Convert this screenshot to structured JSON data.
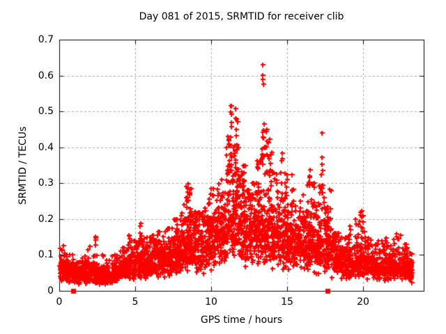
{
  "chart_data": {
    "type": "scatter",
    "title": "Day 081 of 2015, SRMTID for receiver clib",
    "xlabel": "GPS time / hours",
    "ylabel": "SRMTID / TECUs",
    "xlim": [
      0,
      24
    ],
    "ylim": [
      0,
      0.7
    ],
    "xticks": [
      [
        0,
        "0"
      ],
      [
        5,
        "5"
      ],
      [
        10,
        "10"
      ],
      [
        15,
        "15"
      ],
      [
        20,
        "20"
      ]
    ],
    "yticks": [
      [
        0,
        "0"
      ],
      [
        0.1,
        "0.1"
      ],
      [
        0.2,
        "0.2"
      ],
      [
        0.3,
        "0.3"
      ],
      [
        0.4,
        "0.4"
      ],
      [
        0.5,
        "0.5"
      ],
      [
        0.6,
        "0.6"
      ],
      [
        0.7,
        "0.7"
      ]
    ],
    "grid": {
      "on": true,
      "style": "dashed",
      "color": "#a8a8a8"
    },
    "border_color": "#000000",
    "background": "#ffffff",
    "marker": {
      "shape": "plus",
      "color": "#ff0000",
      "size": 7,
      "stroke": 2
    },
    "series_name": "SRMTID",
    "seed": 20150081,
    "density_profile": [
      [
        0.0,
        0.5,
        75,
        0.06,
        0.13
      ],
      [
        0.5,
        1.0,
        70,
        0.05,
        0.1
      ],
      [
        1.0,
        1.5,
        70,
        0.045,
        0.095
      ],
      [
        1.5,
        2.0,
        70,
        0.05,
        0.12
      ],
      [
        2.0,
        2.5,
        70,
        0.048,
        0.13
      ],
      [
        2.5,
        3.0,
        70,
        0.042,
        0.1
      ],
      [
        3.0,
        3.5,
        70,
        0.04,
        0.085
      ],
      [
        3.5,
        4.0,
        70,
        0.05,
        0.1
      ],
      [
        4.0,
        4.5,
        72,
        0.06,
        0.12
      ],
      [
        4.5,
        5.0,
        72,
        0.07,
        0.14
      ],
      [
        5.0,
        5.5,
        75,
        0.078,
        0.135
      ],
      [
        5.5,
        6.0,
        75,
        0.08,
        0.15
      ],
      [
        6.0,
        6.5,
        75,
        0.088,
        0.155
      ],
      [
        6.5,
        7.0,
        75,
        0.09,
        0.165
      ],
      [
        7.0,
        7.5,
        78,
        0.098,
        0.175
      ],
      [
        7.5,
        8.0,
        78,
        0.1,
        0.2
      ],
      [
        8.0,
        8.5,
        80,
        0.115,
        0.24
      ],
      [
        8.5,
        9.0,
        80,
        0.135,
        0.26
      ],
      [
        9.0,
        9.5,
        75,
        0.12,
        0.22
      ],
      [
        9.5,
        10.0,
        78,
        0.13,
        0.27
      ],
      [
        10.0,
        10.5,
        80,
        0.14,
        0.285
      ],
      [
        10.5,
        11.0,
        85,
        0.16,
        0.31
      ],
      [
        11.0,
        11.5,
        85,
        0.195,
        0.4
      ],
      [
        11.5,
        12.0,
        85,
        0.21,
        0.4
      ],
      [
        12.0,
        12.5,
        82,
        0.18,
        0.35
      ],
      [
        12.5,
        13.0,
        80,
        0.17,
        0.3
      ],
      [
        13.0,
        13.5,
        85,
        0.18,
        0.4
      ],
      [
        13.5,
        14.0,
        85,
        0.17,
        0.4
      ],
      [
        14.0,
        14.5,
        80,
        0.16,
        0.33
      ],
      [
        14.5,
        15.0,
        78,
        0.15,
        0.3
      ],
      [
        15.0,
        15.5,
        78,
        0.14,
        0.285
      ],
      [
        15.5,
        16.0,
        75,
        0.135,
        0.25
      ],
      [
        16.0,
        16.5,
        78,
        0.14,
        0.3
      ],
      [
        16.5,
        17.0,
        75,
        0.13,
        0.3
      ],
      [
        17.0,
        17.5,
        78,
        0.125,
        0.3
      ],
      [
        17.5,
        18.0,
        75,
        0.12,
        0.29
      ],
      [
        18.0,
        18.5,
        70,
        0.09,
        0.16
      ],
      [
        18.5,
        19.0,
        68,
        0.082,
        0.15
      ],
      [
        19.0,
        19.5,
        68,
        0.08,
        0.18
      ],
      [
        19.5,
        20.0,
        68,
        0.08,
        0.2
      ],
      [
        20.0,
        20.5,
        68,
        0.072,
        0.15
      ],
      [
        20.5,
        21.0,
        66,
        0.07,
        0.13
      ],
      [
        21.0,
        21.5,
        66,
        0.07,
        0.14
      ],
      [
        21.5,
        22.0,
        66,
        0.07,
        0.155
      ],
      [
        22.0,
        22.5,
        66,
        0.068,
        0.16
      ],
      [
        22.5,
        23.0,
        64,
        0.065,
        0.13
      ],
      [
        23.0,
        23.25,
        35,
        0.058,
        0.105
      ]
    ],
    "spike_clusters": [
      [
        2.4,
        0.03,
        3,
        0.13,
        0.158
      ],
      [
        4.6,
        0.04,
        3,
        0.12,
        0.156
      ],
      [
        5.35,
        0.05,
        8,
        0.125,
        0.19
      ],
      [
        8.45,
        0.12,
        12,
        0.18,
        0.315
      ],
      [
        8.6,
        0.06,
        6,
        0.2,
        0.3
      ],
      [
        11.15,
        0.1,
        14,
        0.3,
        0.47
      ],
      [
        11.3,
        0.06,
        10,
        0.32,
        0.52
      ],
      [
        11.65,
        0.1,
        12,
        0.3,
        0.51
      ],
      [
        12.05,
        0.08,
        6,
        0.26,
        0.345
      ],
      [
        13.42,
        0.06,
        10,
        0.37,
        0.48
      ],
      [
        13.6,
        0.08,
        8,
        0.32,
        0.46
      ],
      [
        13.85,
        0.1,
        6,
        0.3,
        0.43
      ],
      [
        14.65,
        0.05,
        4,
        0.3,
        0.385
      ],
      [
        14.95,
        0.08,
        5,
        0.27,
        0.33
      ],
      [
        15.3,
        0.05,
        3,
        0.28,
        0.326
      ],
      [
        16.5,
        0.07,
        6,
        0.29,
        0.35
      ],
      [
        17.3,
        0.06,
        7,
        0.28,
        0.44
      ],
      [
        19.95,
        0.15,
        10,
        0.13,
        0.225
      ]
    ],
    "peak_points": [
      [
        13.38,
        0.63
      ],
      [
        13.41,
        0.601
      ],
      [
        13.4,
        0.59
      ],
      [
        13.43,
        0.576
      ],
      [
        13.48,
        0.465
      ],
      [
        11.31,
        0.515
      ],
      [
        11.28,
        0.498
      ],
      [
        11.62,
        0.508
      ],
      [
        11.66,
        0.478
      ],
      [
        17.32,
        0.44
      ]
    ],
    "zero_markers": [
      [
        0.92,
        0
      ],
      [
        17.66,
        0
      ]
    ]
  }
}
